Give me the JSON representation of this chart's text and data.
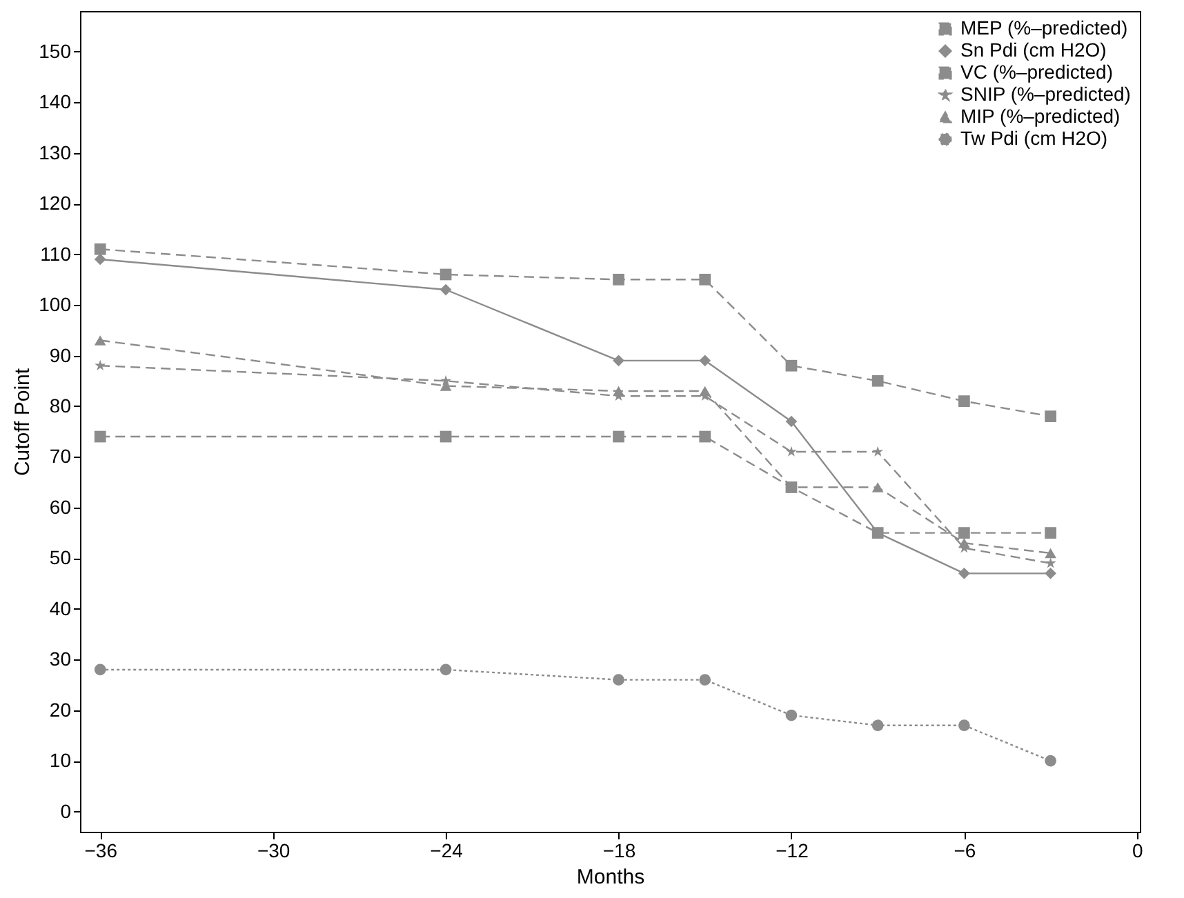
{
  "chart_data": {
    "type": "line",
    "xlabel": "Months",
    "ylabel": "Cutoff Point",
    "x": [
      -36,
      -24,
      -18,
      -15,
      -12,
      -9,
      -6,
      -3
    ],
    "series": [
      {
        "name": "MEP (%–predicted)",
        "color": "#8c8c8c",
        "marker": "square",
        "line_style": "dashed",
        "values": [
          74,
          74,
          74,
          74,
          64,
          55,
          55,
          55
        ]
      },
      {
        "name": "Sn Pdi (cm H2O)",
        "color": "#8c8c8c",
        "marker": "diamond",
        "line_style": "solid",
        "values": [
          109,
          103,
          89,
          89,
          77,
          55,
          47,
          47
        ]
      },
      {
        "name": "VC (%–predicted)",
        "color": "#8c8c8c",
        "marker": "square",
        "line_style": "dashed",
        "values": [
          111,
          106,
          105,
          105,
          88,
          85,
          81,
          78
        ]
      },
      {
        "name": "SNIP (%–predicted)",
        "color": "#8c8c8c",
        "marker": "star",
        "line_style": "dashed",
        "values": [
          88,
          85,
          82,
          82,
          71,
          71,
          52,
          49
        ]
      },
      {
        "name": "MIP (%–predicted)",
        "color": "#8c8c8c",
        "marker": "triangle",
        "line_style": "dashed",
        "values": [
          93,
          84,
          83,
          83,
          64,
          64,
          53,
          51
        ]
      },
      {
        "name": "Tw Pdi (cm H2O)",
        "color": "#8c8c8c",
        "marker": "circle",
        "line_style": "dotted",
        "values": [
          28,
          28,
          26,
          26,
          19,
          17,
          17,
          10
        ]
      }
    ],
    "xlim": [
      -36.7,
      0.1
    ],
    "xticks": [
      -36,
      -30,
      -24,
      -18,
      -12,
      -6,
      0
    ],
    "ylim": [
      -4,
      158
    ],
    "yticks": [
      0,
      10,
      20,
      30,
      40,
      50,
      60,
      70,
      80,
      90,
      100,
      110,
      120,
      130,
      140,
      150
    ],
    "grid": false,
    "legend": "top right"
  }
}
